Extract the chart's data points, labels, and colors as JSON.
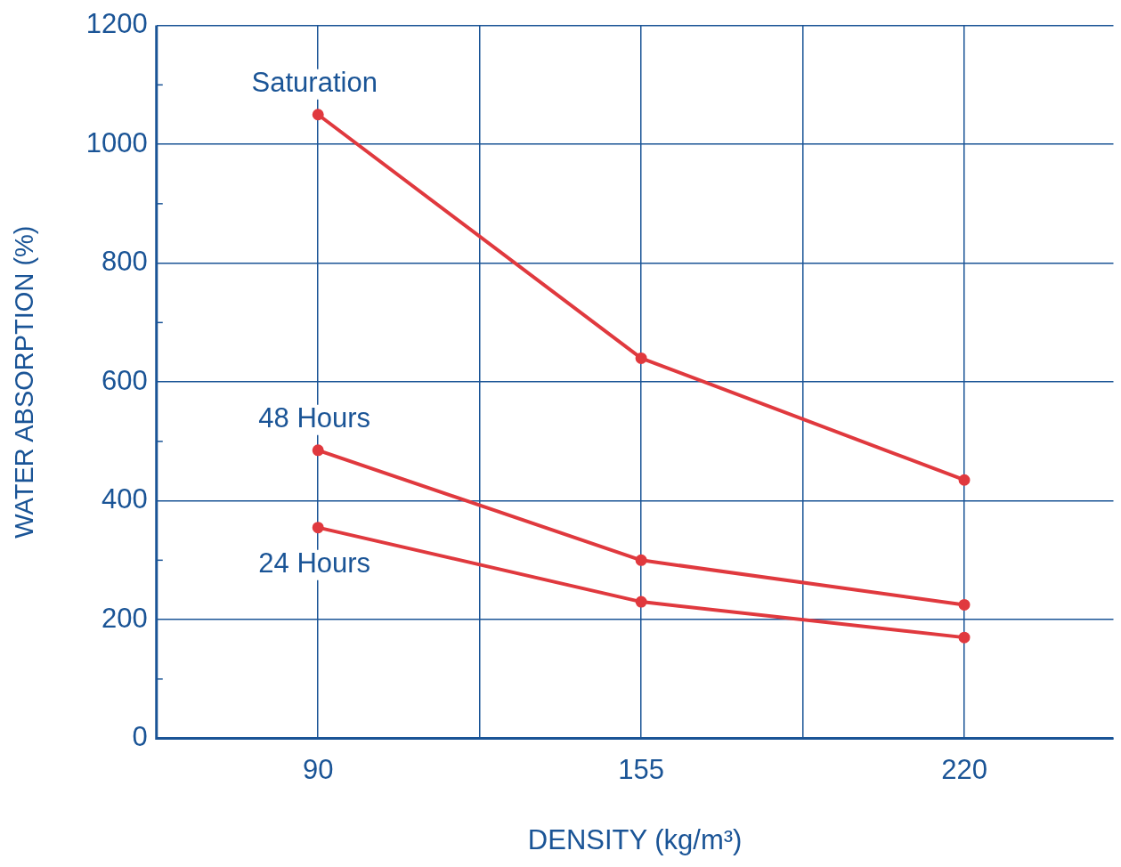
{
  "chart_data": {
    "type": "line",
    "xlabel": "DENSITY (kg/m³)",
    "ylabel": "WATER ABSORPTION (%)",
    "xlim": [
      57.5,
      250
    ],
    "xticks": [
      90,
      {
        "value": 122.5,
        "label": null
      },
      155,
      {
        "value": 187.5,
        "label": null
      },
      220
    ],
    "ylim": [
      0,
      1200
    ],
    "yticks": [
      0,
      {
        "value": 100,
        "label": null
      },
      200,
      {
        "value": 300,
        "label": null
      },
      400,
      {
        "value": 500,
        "label": null
      },
      600,
      {
        "value": 700,
        "label": null
      },
      800,
      {
        "value": 900,
        "label": null
      },
      1000,
      {
        "value": 1100,
        "label": null
      },
      1200
    ],
    "x": [
      90,
      155,
      220
    ],
    "series": [
      {
        "name": "Saturation",
        "color": "#e0393e",
        "values": [
          1050,
          640,
          435
        ]
      },
      {
        "name": "48 Hours",
        "color": "#e0393e",
        "values": [
          485,
          300,
          225
        ]
      },
      {
        "name": "24 Hours",
        "color": "#e0393e",
        "values": [
          355,
          230,
          170
        ]
      }
    ],
    "grid": true,
    "legend": false,
    "marker": "circle",
    "line_style": "solid"
  }
}
